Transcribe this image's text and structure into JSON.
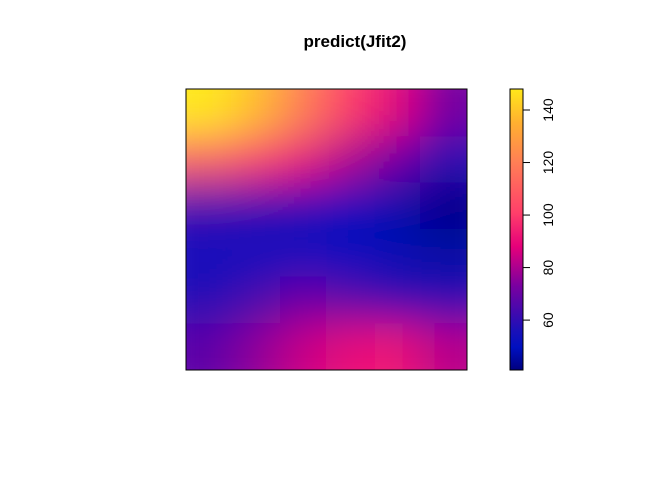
{
  "chart_data": {
    "type": "heatmap",
    "title": "predict(Jfit2)",
    "xlabel": "",
    "ylabel": "",
    "axes_shown": false,
    "grid": false,
    "legend": "right",
    "colorbar": {
      "zlim": [
        41,
        148
      ],
      "ticks": [
        60,
        80,
        100,
        120,
        140
      ],
      "tick_labels": [
        "60",
        "80",
        "100",
        "120",
        "140"
      ],
      "palette": [
        "#00007f",
        "#0010c0",
        "#0014b0",
        "#7a00a0",
        "#e6007a",
        "#ff3f6a",
        "#ff7f55",
        "#ffb030",
        "#ffe81a"
      ]
    },
    "surface": {
      "description_values": "predicted surface values sampled on a 6x6 grid (rows top→bottom, cols left→right)",
      "grid": [
        [
          148,
          138,
          120,
          100,
          88,
          72
        ],
        [
          110,
          100,
          90,
          80,
          70,
          58
        ],
        [
          62,
          60,
          58,
          52,
          47,
          42
        ],
        [
          52,
          52,
          52,
          50,
          48,
          46
        ],
        [
          58,
          64,
          70,
          66,
          60,
          58
        ],
        [
          68,
          76,
          84,
          90,
          92,
          82
        ]
      ]
    }
  }
}
